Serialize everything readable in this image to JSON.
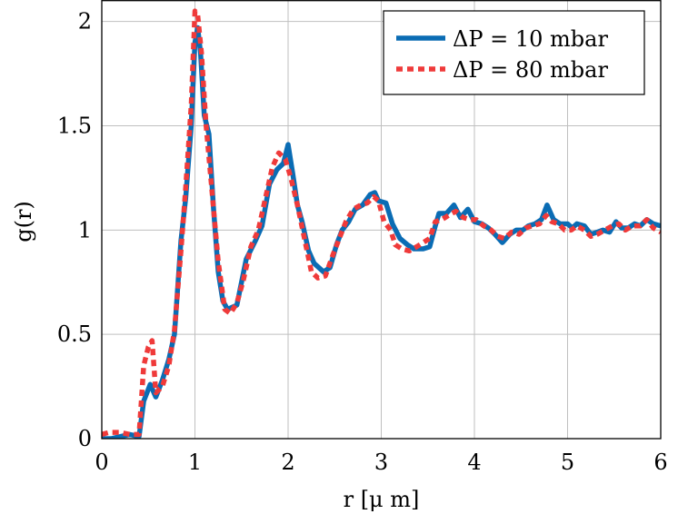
{
  "chart_data": {
    "type": "line",
    "title": "",
    "xlabel": "r [μ m]",
    "ylabel": "g(r)",
    "xlim": [
      0,
      6
    ],
    "ylim": [
      0,
      2.1
    ],
    "xticks": [
      0,
      1,
      2,
      3,
      4,
      5,
      6
    ],
    "xtick_labels": [
      "0",
      "1",
      "2",
      "3",
      "4",
      "5",
      "6"
    ],
    "yticks": [
      0,
      0.5,
      1,
      1.5,
      2
    ],
    "ytick_labels": [
      "0",
      "0.5",
      "1",
      "1.5",
      "2"
    ],
    "grid": true,
    "legend_position": "top-right",
    "series": [
      {
        "name": "ΔP = 10 mbar",
        "color": "#0a6cb4",
        "style": "solid",
        "points": [
          [
            0.0,
            0.0
          ],
          [
            0.1,
            0.0
          ],
          [
            0.2,
            0.01
          ],
          [
            0.3,
            0.02
          ],
          [
            0.4,
            0.01
          ],
          [
            0.45,
            0.18
          ],
          [
            0.52,
            0.26
          ],
          [
            0.58,
            0.2
          ],
          [
            0.65,
            0.28
          ],
          [
            0.72,
            0.38
          ],
          [
            0.78,
            0.5
          ],
          [
            0.85,
            0.95
          ],
          [
            0.9,
            1.15
          ],
          [
            0.96,
            1.5
          ],
          [
            1.0,
            1.9
          ],
          [
            1.03,
            1.97
          ],
          [
            1.06,
            1.85
          ],
          [
            1.1,
            1.55
          ],
          [
            1.15,
            1.46
          ],
          [
            1.2,
            1.1
          ],
          [
            1.25,
            0.8
          ],
          [
            1.3,
            0.66
          ],
          [
            1.35,
            0.62
          ],
          [
            1.45,
            0.64
          ],
          [
            1.55,
            0.86
          ],
          [
            1.65,
            0.95
          ],
          [
            1.72,
            1.02
          ],
          [
            1.8,
            1.22
          ],
          [
            1.88,
            1.29
          ],
          [
            1.95,
            1.32
          ],
          [
            2.0,
            1.41
          ],
          [
            2.05,
            1.27
          ],
          [
            2.1,
            1.12
          ],
          [
            2.15,
            1.04
          ],
          [
            2.22,
            0.9
          ],
          [
            2.28,
            0.84
          ],
          [
            2.38,
            0.8
          ],
          [
            2.45,
            0.82
          ],
          [
            2.52,
            0.93
          ],
          [
            2.58,
            1.0
          ],
          [
            2.65,
            1.04
          ],
          [
            2.72,
            1.1
          ],
          [
            2.8,
            1.12
          ],
          [
            2.88,
            1.17
          ],
          [
            2.93,
            1.18
          ],
          [
            2.97,
            1.14
          ],
          [
            3.05,
            1.13
          ],
          [
            3.12,
            1.03
          ],
          [
            3.2,
            0.96
          ],
          [
            3.28,
            0.93
          ],
          [
            3.35,
            0.91
          ],
          [
            3.45,
            0.91
          ],
          [
            3.52,
            0.92
          ],
          [
            3.58,
            1.02
          ],
          [
            3.62,
            1.08
          ],
          [
            3.7,
            1.08
          ],
          [
            3.78,
            1.12
          ],
          [
            3.85,
            1.06
          ],
          [
            3.93,
            1.1
          ],
          [
            4.0,
            1.04
          ],
          [
            4.08,
            1.03
          ],
          [
            4.15,
            1.01
          ],
          [
            4.22,
            0.98
          ],
          [
            4.3,
            0.94
          ],
          [
            4.38,
            0.98
          ],
          [
            4.45,
            1.0
          ],
          [
            4.52,
            1.0
          ],
          [
            4.58,
            1.02
          ],
          [
            4.65,
            1.03
          ],
          [
            4.72,
            1.05
          ],
          [
            4.78,
            1.12
          ],
          [
            4.85,
            1.05
          ],
          [
            4.92,
            1.03
          ],
          [
            5.0,
            1.03
          ],
          [
            5.05,
            1.01
          ],
          [
            5.1,
            1.03
          ],
          [
            5.18,
            1.02
          ],
          [
            5.25,
            0.98
          ],
          [
            5.32,
            0.99
          ],
          [
            5.38,
            1.0
          ],
          [
            5.45,
            0.99
          ],
          [
            5.52,
            1.04
          ],
          [
            5.58,
            1.01
          ],
          [
            5.65,
            1.01
          ],
          [
            5.72,
            1.03
          ],
          [
            5.78,
            1.02
          ],
          [
            5.85,
            1.05
          ],
          [
            5.92,
            1.03
          ],
          [
            6.0,
            1.02
          ]
        ]
      },
      {
        "name": "ΔP = 80 mbar",
        "color": "#ef3a3a",
        "style": "dashed",
        "points": [
          [
            0.0,
            0.02
          ],
          [
            0.08,
            0.03
          ],
          [
            0.2,
            0.03
          ],
          [
            0.3,
            0.02
          ],
          [
            0.4,
            0.02
          ],
          [
            0.45,
            0.35
          ],
          [
            0.5,
            0.44
          ],
          [
            0.54,
            0.47
          ],
          [
            0.58,
            0.22
          ],
          [
            0.65,
            0.25
          ],
          [
            0.72,
            0.35
          ],
          [
            0.78,
            0.52
          ],
          [
            0.85,
            0.9
          ],
          [
            0.9,
            1.2
          ],
          [
            0.96,
            1.6
          ],
          [
            1.0,
            2.05
          ],
          [
            1.03,
            2.03
          ],
          [
            1.07,
            1.85
          ],
          [
            1.12,
            1.5
          ],
          [
            1.18,
            1.2
          ],
          [
            1.25,
            0.85
          ],
          [
            1.32,
            0.62
          ],
          [
            1.38,
            0.6
          ],
          [
            1.45,
            0.65
          ],
          [
            1.52,
            0.76
          ],
          [
            1.6,
            0.92
          ],
          [
            1.68,
            1.0
          ],
          [
            1.75,
            1.14
          ],
          [
            1.83,
            1.3
          ],
          [
            1.9,
            1.37
          ],
          [
            1.97,
            1.34
          ],
          [
            2.03,
            1.25
          ],
          [
            2.1,
            1.12
          ],
          [
            2.18,
            0.95
          ],
          [
            2.25,
            0.8
          ],
          [
            2.32,
            0.77
          ],
          [
            2.4,
            0.78
          ],
          [
            2.48,
            0.88
          ],
          [
            2.55,
            0.96
          ],
          [
            2.62,
            1.04
          ],
          [
            2.7,
            1.1
          ],
          [
            2.78,
            1.12
          ],
          [
            2.85,
            1.13
          ],
          [
            2.92,
            1.16
          ],
          [
            2.97,
            1.14
          ],
          [
            3.03,
            1.04
          ],
          [
            3.1,
            1.0
          ],
          [
            3.15,
            0.93
          ],
          [
            3.22,
            0.91
          ],
          [
            3.3,
            0.9
          ],
          [
            3.38,
            0.92
          ],
          [
            3.45,
            0.94
          ],
          [
            3.52,
            0.96
          ],
          [
            3.58,
            1.04
          ],
          [
            3.65,
            1.05
          ],
          [
            3.72,
            1.07
          ],
          [
            3.8,
            1.09
          ],
          [
            3.88,
            1.06
          ],
          [
            3.95,
            1.05
          ],
          [
            4.02,
            1.05
          ],
          [
            4.1,
            1.02
          ],
          [
            4.18,
            1.0
          ],
          [
            4.25,
            0.97
          ],
          [
            4.32,
            0.96
          ],
          [
            4.4,
            0.99
          ],
          [
            4.48,
            0.98
          ],
          [
            4.55,
            1.01
          ],
          [
            4.62,
            1.02
          ],
          [
            4.7,
            1.03
          ],
          [
            4.77,
            1.07
          ],
          [
            4.83,
            1.04
          ],
          [
            4.9,
            1.03
          ],
          [
            4.97,
            1.0
          ],
          [
            5.04,
            1.0
          ],
          [
            5.1,
            1.02
          ],
          [
            5.18,
            1.0
          ],
          [
            5.25,
            0.97
          ],
          [
            5.32,
            0.98
          ],
          [
            5.4,
            1.0
          ],
          [
            5.48,
            1.02
          ],
          [
            5.55,
            1.03
          ],
          [
            5.62,
            1.0
          ],
          [
            5.7,
            1.02
          ],
          [
            5.78,
            1.02
          ],
          [
            5.85,
            1.05
          ],
          [
            5.92,
            1.01
          ],
          [
            6.0,
            0.99
          ]
        ]
      }
    ]
  }
}
